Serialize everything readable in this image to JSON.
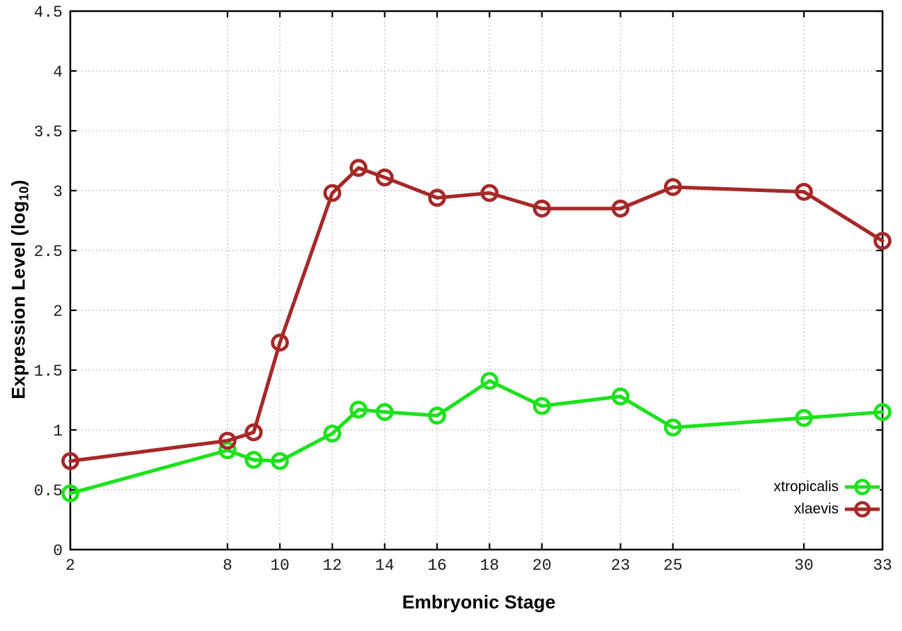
{
  "labels": {
    "xlabel": "Embryonic Stage",
    "ylabel_text": "Expression Level (log",
    "ylabel_sub": "10",
    "ylabel_close": ")"
  },
  "chart_data": {
    "type": "line",
    "title": "",
    "xlabel": "Embryonic Stage",
    "ylabel": "Expression Level (log10)",
    "xlim": [
      2,
      33
    ],
    "ylim": [
      0,
      4.5
    ],
    "x_ticks": [
      2,
      8,
      10,
      12,
      14,
      16,
      18,
      20,
      23,
      25,
      30,
      33
    ],
    "y_ticks": [
      0,
      0.5,
      1,
      1.5,
      2,
      2.5,
      3,
      3.5,
      4,
      4.5
    ],
    "grid": true,
    "grid_color": "#b3b3b3",
    "axis_color": "#000000",
    "legend_position": "inside bottom-right",
    "marker": "open-circle",
    "x": [
      2,
      8,
      9,
      10,
      12,
      13,
      14,
      16,
      18,
      20,
      23,
      25,
      30,
      33
    ],
    "series": [
      {
        "name": "xtropicalis",
        "color": "#1de21d",
        "values": [
          0.47,
          0.83,
          0.75,
          0.74,
          0.97,
          1.17,
          1.15,
          1.12,
          1.41,
          1.2,
          1.28,
          1.02,
          1.1,
          1.15
        ]
      },
      {
        "name": "xlaevis",
        "color": "#a62828",
        "values": [
          0.74,
          0.91,
          0.98,
          1.73,
          2.98,
          3.19,
          3.11,
          2.94,
          2.98,
          2.85,
          2.85,
          3.03,
          2.99,
          2.58
        ]
      }
    ]
  }
}
